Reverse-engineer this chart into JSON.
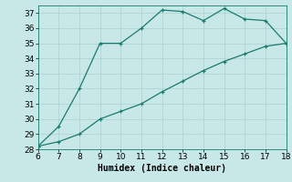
{
  "line1_x": [
    6,
    7,
    8,
    9,
    10,
    11,
    12,
    13,
    14,
    15,
    16,
    17,
    18
  ],
  "line1_y": [
    28.2,
    29.5,
    32,
    35,
    35,
    36,
    37.2,
    37.1,
    36.5,
    37.3,
    36.6,
    36.5,
    35
  ],
  "line2_x": [
    6,
    7,
    8,
    9,
    10,
    11,
    12,
    13,
    14,
    15,
    16,
    17,
    18
  ],
  "line2_y": [
    28.2,
    28.5,
    29.0,
    30.0,
    30.5,
    31.0,
    31.8,
    32.5,
    33.2,
    33.8,
    34.3,
    34.8,
    35.0
  ],
  "line_color": "#1a7a6e",
  "bg_color": "#c8e8e8",
  "grid_color": "#b0d4d4",
  "xlabel": "Humidex (Indice chaleur)",
  "xlim": [
    6,
    18
  ],
  "ylim": [
    28,
    37.5
  ],
  "xticks": [
    6,
    7,
    8,
    9,
    10,
    11,
    12,
    13,
    14,
    15,
    16,
    17,
    18
  ],
  "yticks": [
    28,
    29,
    30,
    31,
    32,
    33,
    34,
    35,
    36,
    37
  ],
  "xlabel_fontsize": 7,
  "tick_fontsize": 6.5
}
